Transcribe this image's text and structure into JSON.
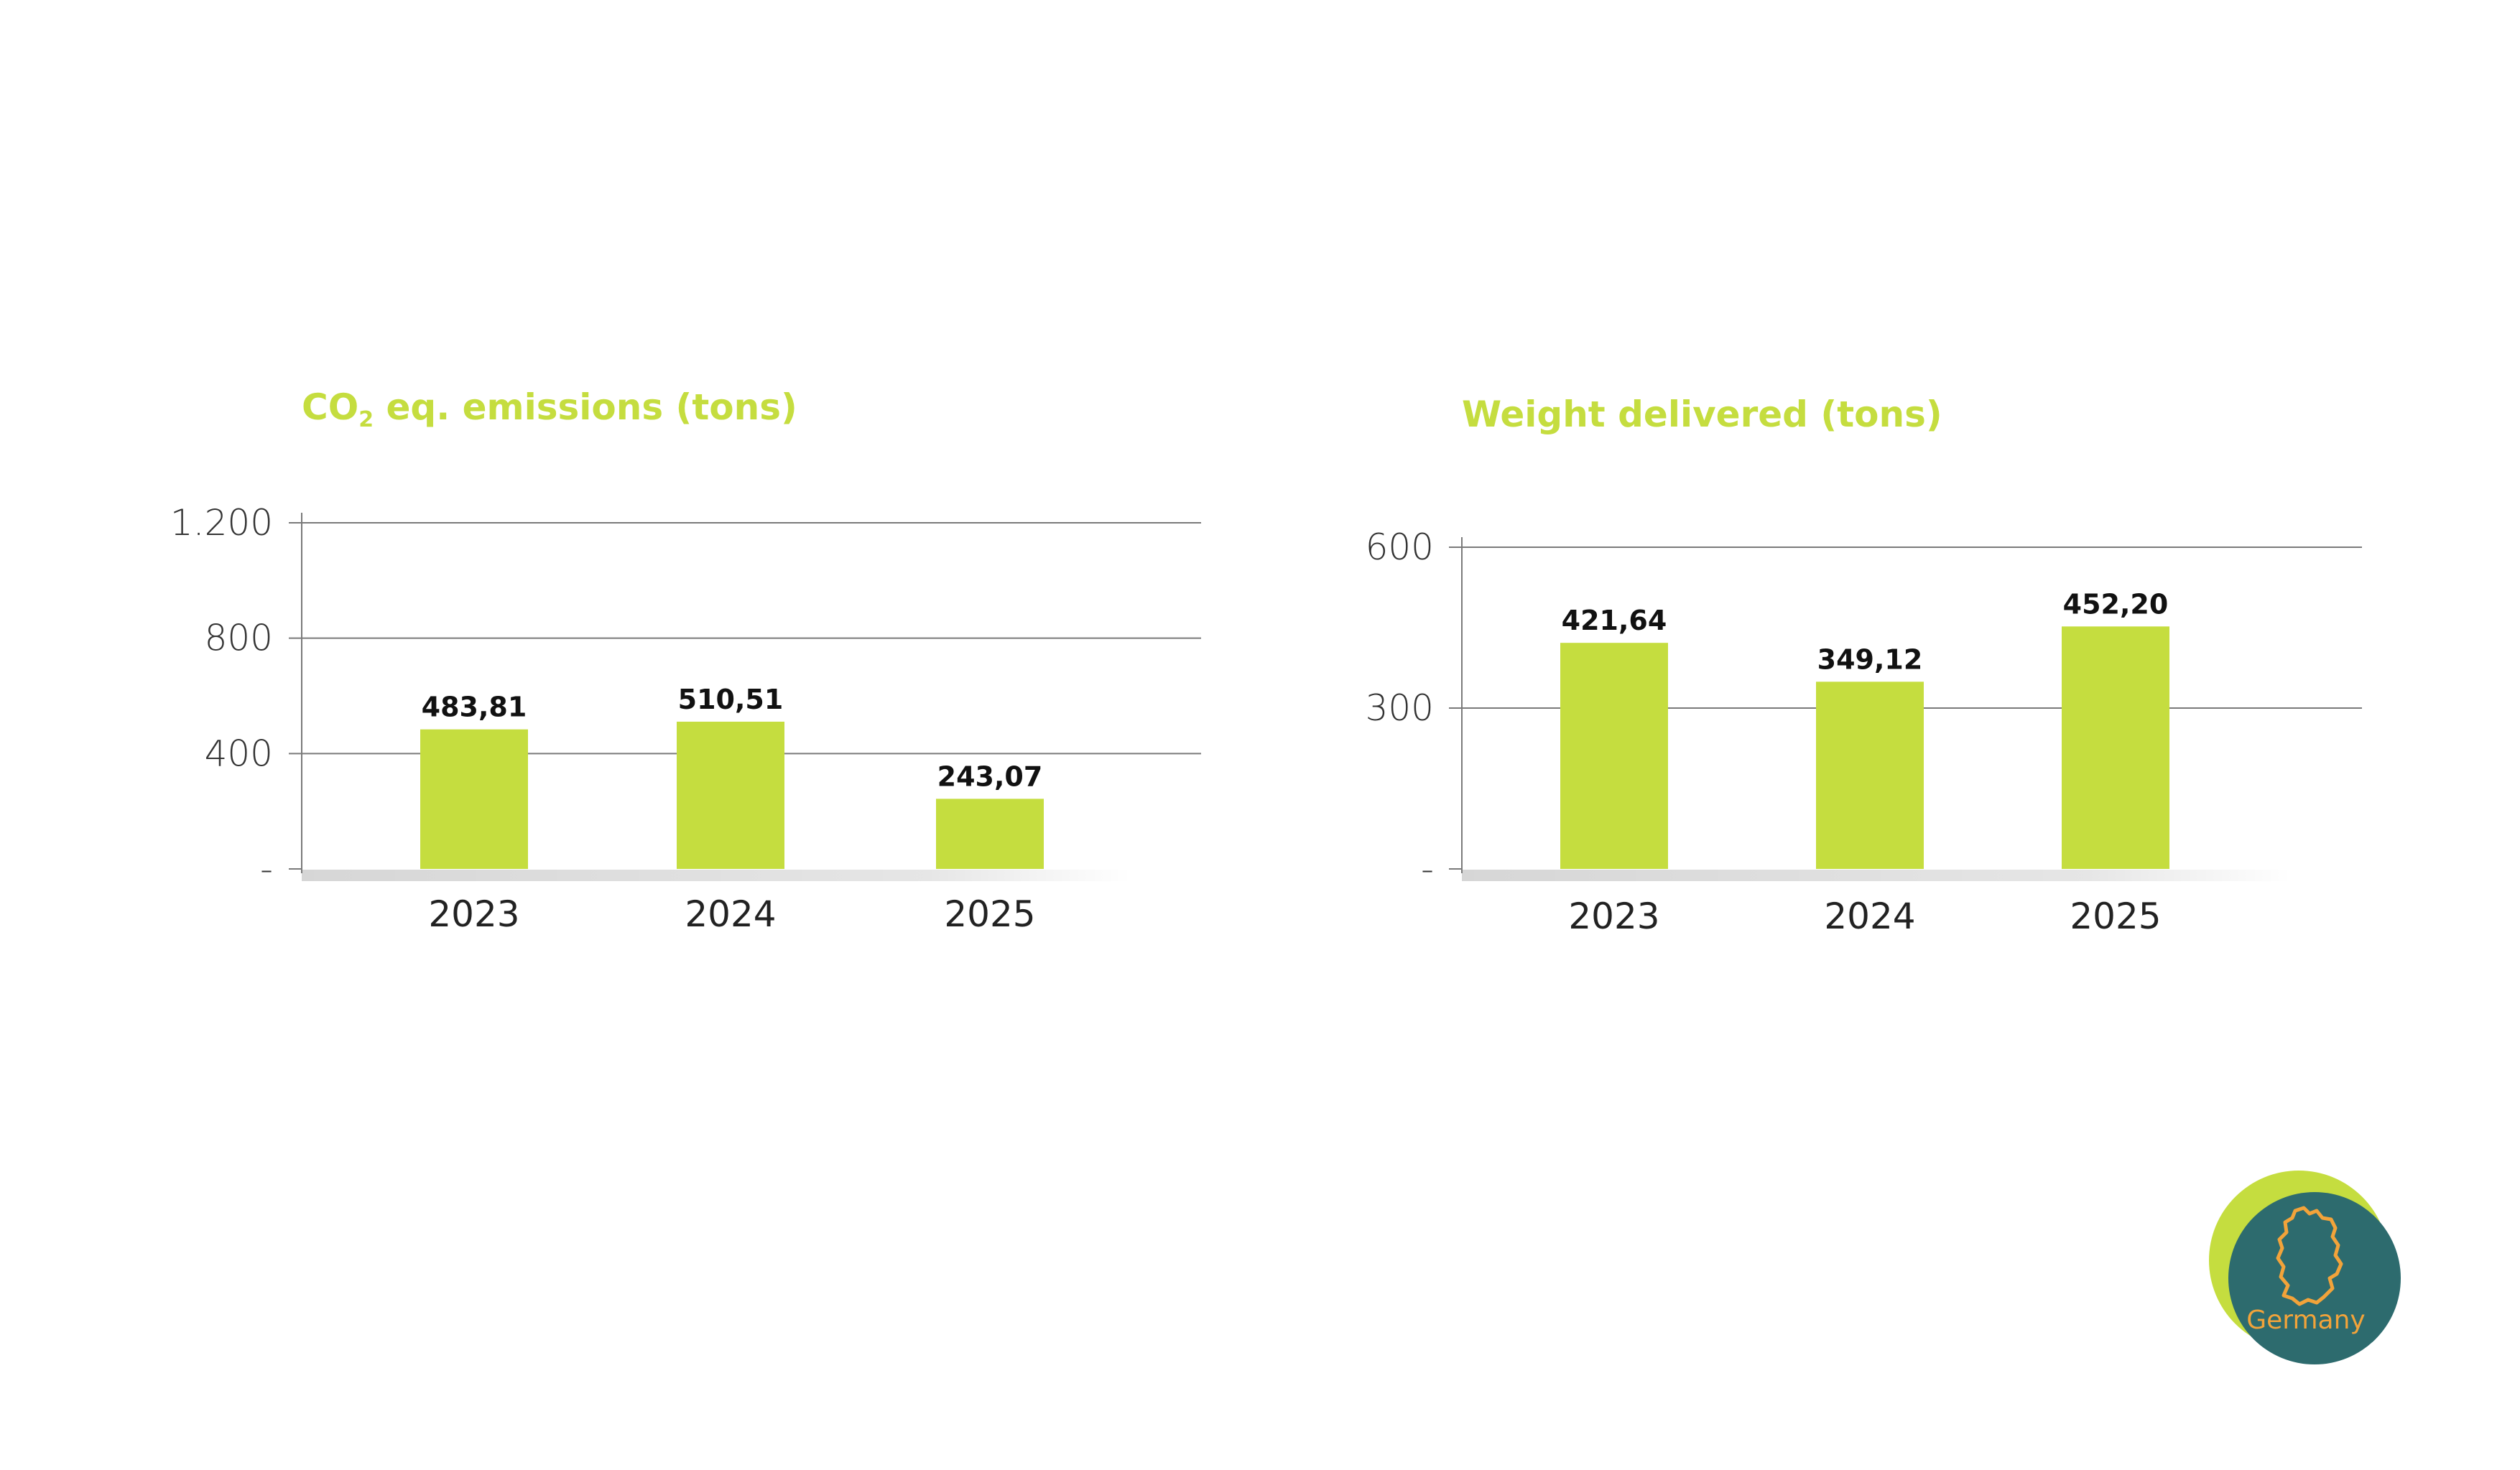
{
  "chart_data": [
    {
      "type": "bar",
      "title_main": "CO",
      "title_sub": "2",
      "title_rest": " eq. emissions (tons)",
      "categories": [
        "2023",
        "2024",
        "2025"
      ],
      "values": [
        483.81,
        510.51,
        243.07
      ],
      "data_labels": [
        "483,81",
        "510,51",
        "243,07"
      ],
      "yticks": [
        {
          "value": 0,
          "label": "-"
        },
        {
          "value": 400,
          "label": "400"
        },
        {
          "value": 800,
          "label": "800"
        },
        {
          "value": 1200,
          "label": "1.200"
        }
      ],
      "ylim": [
        0,
        1200
      ],
      "grid": true,
      "bar_color": "#c5dd3f"
    },
    {
      "type": "bar",
      "title": "Weight delivered (tons)",
      "categories": [
        "2023",
        "2024",
        "2025"
      ],
      "values": [
        421.64,
        349.12,
        452.2
      ],
      "data_labels": [
        "421,64",
        "349,12",
        "452,20"
      ],
      "yticks": [
        {
          "value": 0,
          "label": "-"
        },
        {
          "value": 300,
          "label": "300"
        },
        {
          "value": 600,
          "label": "600"
        }
      ],
      "ylim": [
        0,
        600
      ],
      "grid": true,
      "bar_color": "#c5dd3f"
    }
  ],
  "badge": {
    "label": "Germany",
    "icon": "germany-map-icon",
    "back_color": "#c5dd3f",
    "front_color": "#2d6b6e",
    "outline_color": "#f2a33a"
  }
}
